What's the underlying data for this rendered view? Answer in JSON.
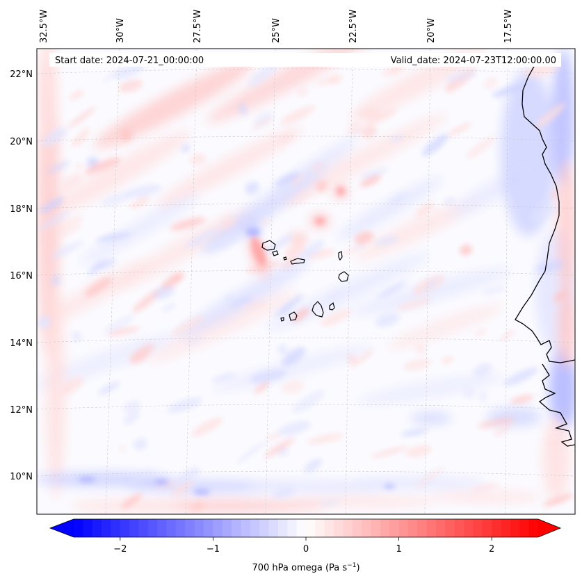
{
  "header": {
    "start_date": "Start date: 2024-07-21_00:00:00",
    "valid_date": "Valid_date: 2024-07-23T12:00:00.00"
  },
  "map": {
    "lon_labels": [
      "32.5°W",
      "30°W",
      "27.5°W",
      "25°W",
      "22.5°W",
      "20°W",
      "17.5°W"
    ],
    "lat_labels": [
      "22°N",
      "20°N",
      "18°N",
      "16°N",
      "14°N",
      "12°N",
      "10°N"
    ],
    "lon_range": [
      -32.5,
      -15.1
    ],
    "lat_range": [
      8.9,
      22.8
    ]
  },
  "colorbar": {
    "label_prefix": "700 hPa omega (Pa s",
    "label_sup": "−1",
    "label_suffix": ")",
    "tick_labels": [
      "−2",
      "−1",
      "0",
      "1",
      "2"
    ],
    "tick_values": [
      -2,
      -1,
      0,
      1,
      2
    ],
    "vmin": -2.5,
    "vmax": 2.5,
    "colormap": "bwr",
    "low_color": "#0000ff",
    "mid_color": "#ffffff",
    "high_color": "#ff0000"
  }
}
